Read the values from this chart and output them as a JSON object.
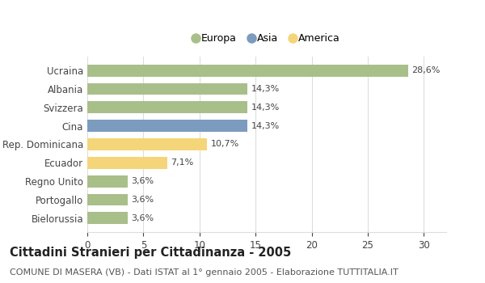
{
  "categories": [
    "Ucraina",
    "Albania",
    "Svizzera",
    "Cina",
    "Rep. Dominicana",
    "Ecuador",
    "Regno Unito",
    "Portogallo",
    "Bielorussia"
  ],
  "values": [
    28.6,
    14.3,
    14.3,
    14.3,
    10.7,
    7.1,
    3.6,
    3.6,
    3.6
  ],
  "labels": [
    "28,6%",
    "14,3%",
    "14,3%",
    "14,3%",
    "10,7%",
    "7,1%",
    "3,6%",
    "3,6%",
    "3,6%"
  ],
  "colors": [
    "#a8bf8a",
    "#a8bf8a",
    "#a8bf8a",
    "#7b9bbf",
    "#f5d57a",
    "#f5d57a",
    "#a8bf8a",
    "#a8bf8a",
    "#a8bf8a"
  ],
  "legend_items": [
    {
      "label": "Europa",
      "color": "#a8bf8a"
    },
    {
      "label": "Asia",
      "color": "#7b9bbf"
    },
    {
      "label": "America",
      "color": "#f5d57a"
    }
  ],
  "xlim": [
    0,
    32
  ],
  "xticks": [
    0,
    5,
    10,
    15,
    20,
    25,
    30
  ],
  "title": "Cittadini Stranieri per Cittadinanza - 2005",
  "subtitle": "COMUNE DI MASERA (VB) - Dati ISTAT al 1° gennaio 2005 - Elaborazione TUTTITALIA.IT",
  "background_color": "#ffffff",
  "bar_height": 0.65,
  "grid_color": "#dddddd",
  "label_fontsize": 8.0,
  "ytick_fontsize": 8.5,
  "xtick_fontsize": 8.5,
  "legend_fontsize": 9.0,
  "title_fontsize": 10.5,
  "subtitle_fontsize": 8.0
}
